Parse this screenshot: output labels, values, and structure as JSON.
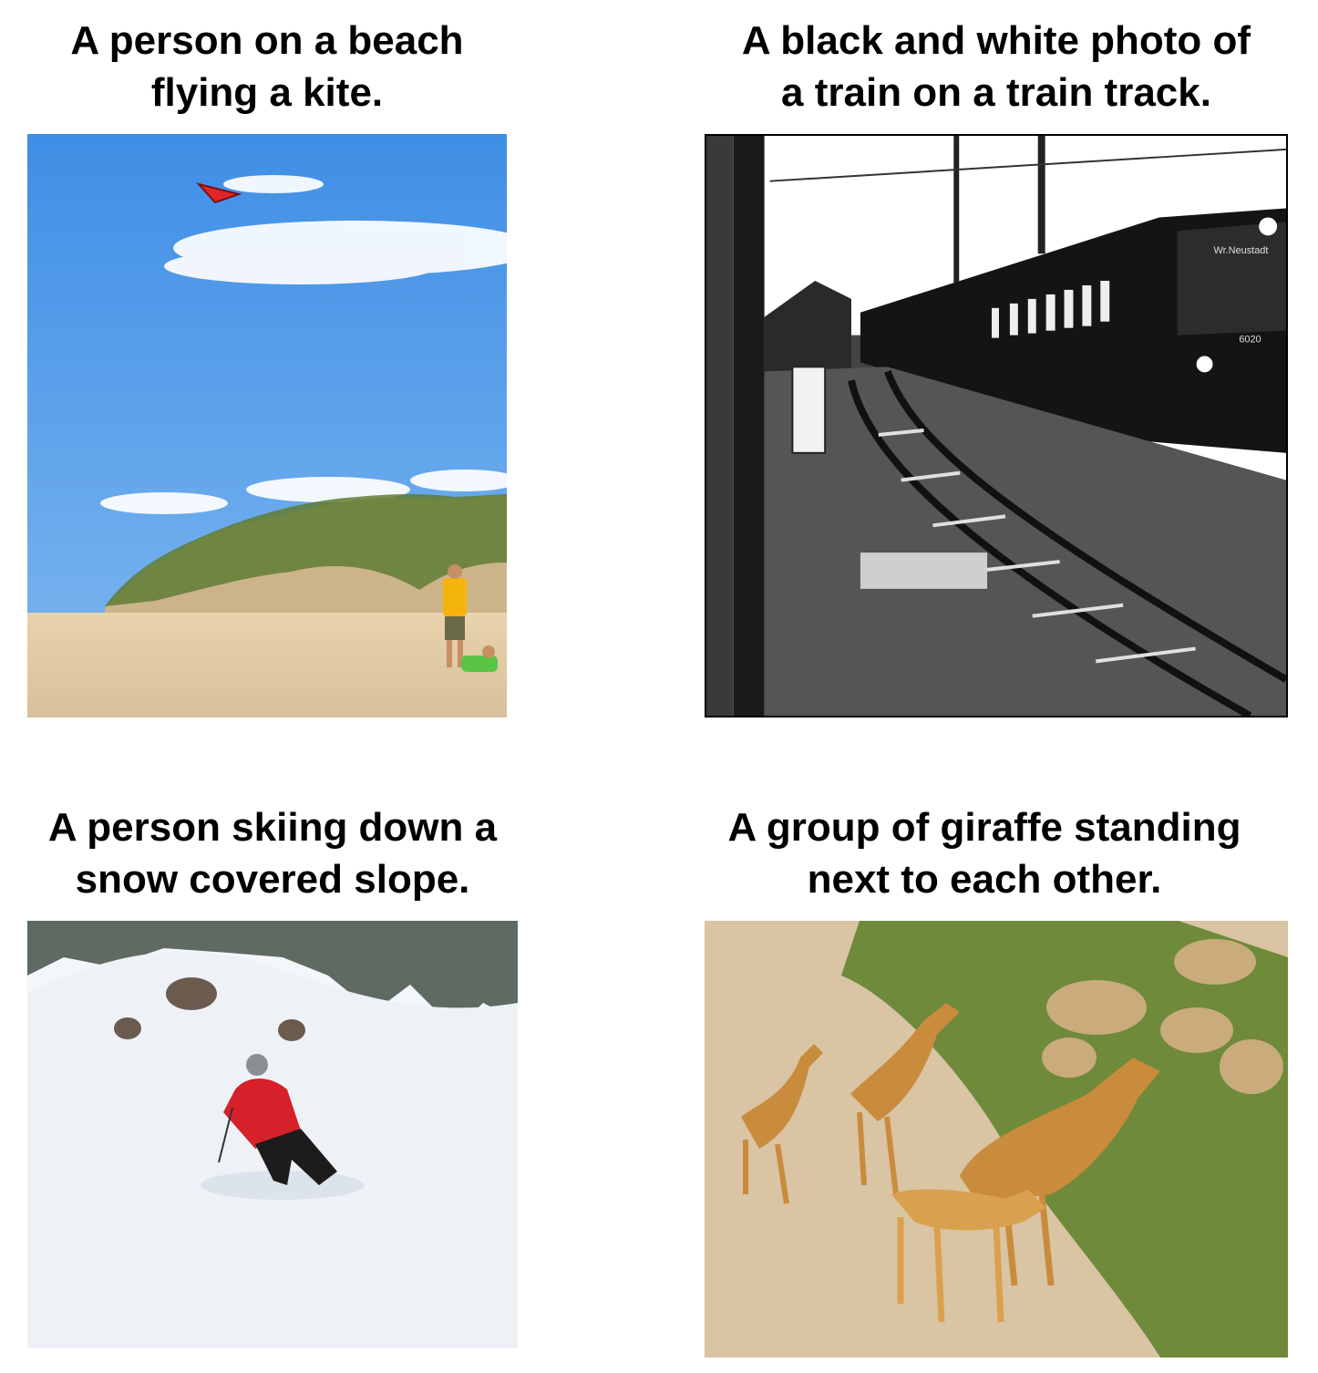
{
  "panels": [
    {
      "caption_line1": "A person on a beach",
      "caption_line2": "flying a kite."
    },
    {
      "caption_line1": "A black and white photo of",
      "caption_line2": "a train on a train track."
    },
    {
      "caption_line1": "A person skiing down a",
      "caption_line2": "snow covered slope."
    },
    {
      "caption_line1": "A group of giraffe standing",
      "caption_line2": "next to each other."
    }
  ],
  "train_signage": {
    "destination": "Wr.Neustadt",
    "number": "6020"
  },
  "colors": {
    "sky": "#4f9de8",
    "sand": "#e3cfa8",
    "kite": "#e0262a",
    "shirt": "#f5b40c",
    "jacket": "#d6202a",
    "snow": "#f3f6fa",
    "giraffe": "#c98b3c",
    "ground": "#d9c4a3",
    "grass": "#6e8a3a"
  }
}
